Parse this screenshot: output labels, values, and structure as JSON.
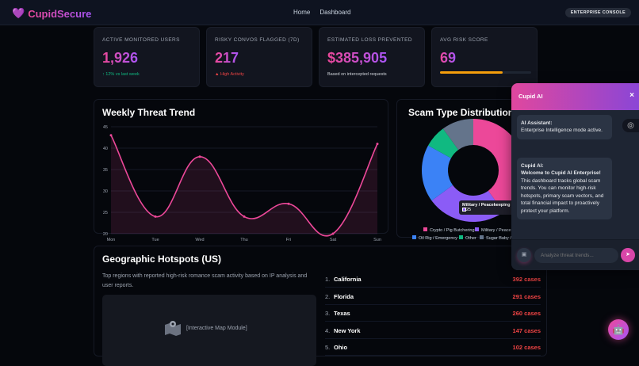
{
  "nav": {
    "brand": "CupidSecure",
    "links": [
      "Home",
      "Dashboard"
    ],
    "badge": "ENTERPRISE CONSOLE"
  },
  "stats": [
    {
      "label": "ACTIVE MONITORED USERS",
      "value": "1,926",
      "sub": "↑ 12% vs last week",
      "sub_color": "#10b981"
    },
    {
      "label": "RISKY CONVOS FLAGGED (7D)",
      "value": "217",
      "sub": "▲ High Activity",
      "sub_color": "#ef4444"
    },
    {
      "label": "ESTIMATED LOSS PREVENTED",
      "value": "$385,905",
      "sub": "Based on intercepted requests",
      "sub_color": "#d1d5db"
    },
    {
      "label": "AVG RISK SCORE",
      "value": "69",
      "progress": 69
    }
  ],
  "trend": {
    "title": "Weekly Threat Trend",
    "chart_data": {
      "type": "line",
      "categories": [
        "Mon",
        "Tue",
        "Wed",
        "Thu",
        "Fri",
        "Sat",
        "Sun"
      ],
      "values": [
        43,
        24,
        38,
        24,
        27,
        20,
        41
      ],
      "ylim": [
        20,
        45
      ],
      "yticks": [
        20,
        25,
        30,
        35,
        40,
        45
      ],
      "color": "#ec4899",
      "fill": true,
      "grid": true
    }
  },
  "donut": {
    "title": "Scam Type Distribution",
    "chart_data": {
      "type": "pie",
      "donut": true,
      "labels": [
        "Crypto / Pig Butchering",
        "Military / Peacekeeping",
        "Oil Rig / Emergency",
        "Other",
        "Sugar Baby / Sugar Daddy"
      ],
      "legend_visible": [
        "Crypto / Pig Butchering",
        "Military / Peacek",
        "Oil Rig / Emergency",
        "Other",
        "Sugar Baby / S"
      ],
      "values": [
        40,
        25,
        18,
        7,
        10
      ],
      "colors": [
        "#ec4899",
        "#8b5cf6",
        "#3b82f6",
        "#10b981",
        "#64748b"
      ],
      "legend": "bottom"
    },
    "tooltip": {
      "label": "Military / Peacekeeping",
      "value": "25"
    }
  },
  "geo": {
    "title": "Geographic Hotspots (US)",
    "desc": "Top regions with reported high-risk romance scam activity based on IP analysis and user reports.",
    "map_label": "[Interactive Map Module]",
    "hotspots": [
      {
        "rank": "1.",
        "state": "California",
        "cases": "392 cases"
      },
      {
        "rank": "2.",
        "state": "Florida",
        "cases": "291 cases"
      },
      {
        "rank": "3.",
        "state": "Texas",
        "cases": "260 cases"
      },
      {
        "rank": "4.",
        "state": "New York",
        "cases": "147 cases"
      },
      {
        "rank": "5.",
        "state": "Ohio",
        "cases": "102 cases"
      }
    ]
  },
  "chat": {
    "title": "Cupid AI",
    "messages": [
      {
        "sender": "AI Assistant:",
        "text": "Enterprise Intelligence mode active."
      },
      {
        "sender": "Cupid AI:",
        "headline": "Welcome to Cupid AI Enterprise!",
        "text": "This dashboard tracks global scam trends. You can monitor high-risk hotspots, primary scam vectors, and total financial impact to proactively protect your platform."
      }
    ],
    "placeholder": "Analyze threat trends..."
  }
}
